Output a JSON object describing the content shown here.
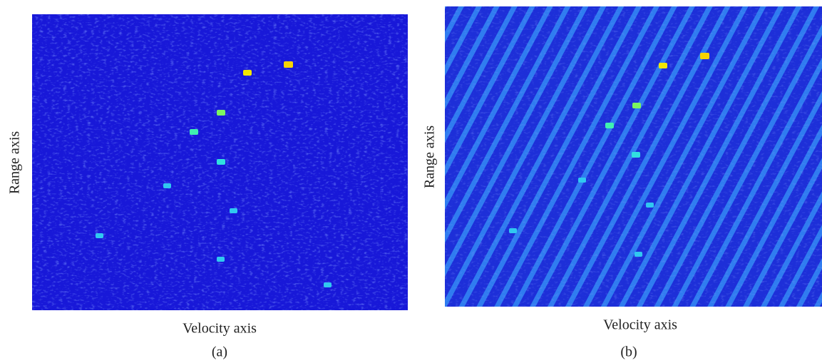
{
  "panels": [
    {
      "ylabel": "Range axis",
      "xlabel": "Velocity axis",
      "caption": "(a)"
    },
    {
      "ylabel": "Range axis",
      "xlabel": "Velocity axis",
      "caption": "(b)"
    }
  ]
}
